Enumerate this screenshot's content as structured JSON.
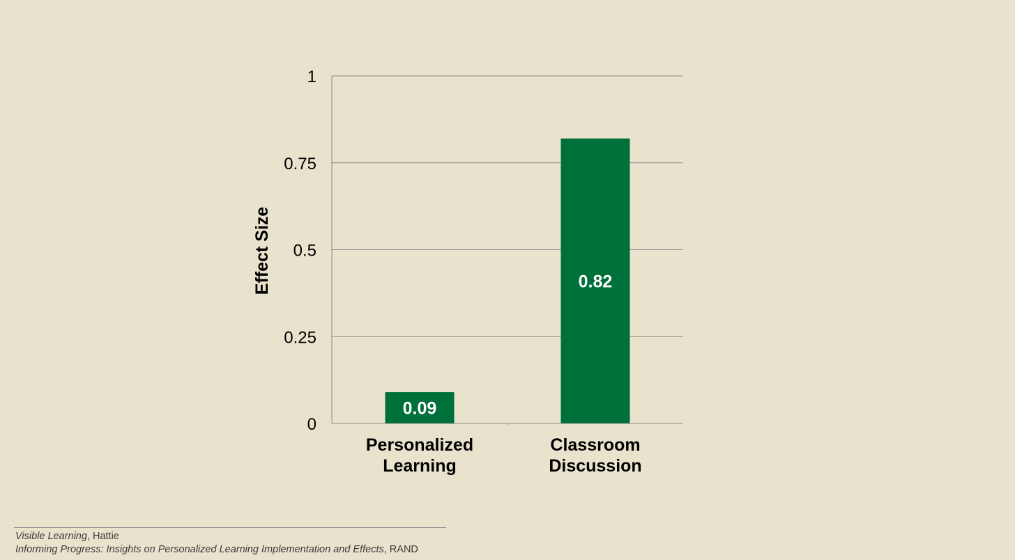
{
  "chart_data": {
    "type": "bar",
    "categories": [
      [
        "Personalized",
        "Learning"
      ],
      [
        "Classroom",
        "Discussion"
      ]
    ],
    "values": [
      0.09,
      0.82
    ],
    "data_labels": [
      "0.09",
      "0.82"
    ],
    "ylabel": "Effect Size",
    "ylim": [
      0,
      1
    ],
    "yticks": [
      "0",
      "0.25",
      "0.5",
      "0.75",
      "1"
    ],
    "grid": true,
    "bar_color": "#00703a"
  },
  "sources": [
    {
      "title": "Visible Learning",
      "author": "Hattie"
    },
    {
      "title": "Informing Progress: Insights on Personalized Learning Implementation and Effects",
      "author": "RAND"
    }
  ]
}
